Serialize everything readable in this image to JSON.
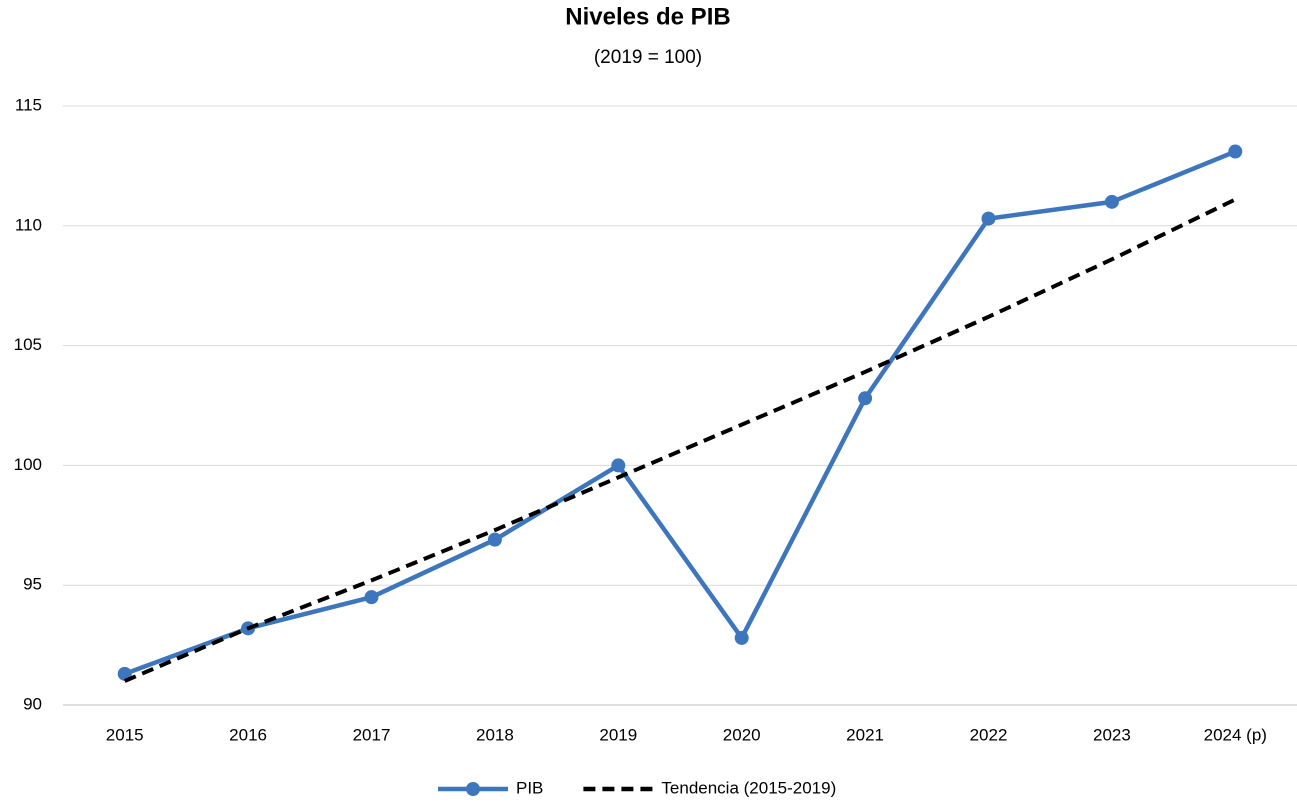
{
  "chart_data": {
    "type": "line",
    "title": "Niveles de PIB",
    "subtitle": "(2019 = 100)",
    "categories": [
      "2015",
      "2016",
      "2017",
      "2018",
      "2019",
      "2020",
      "2021",
      "2022",
      "2023",
      "2024 (p)"
    ],
    "series": [
      {
        "name": "PIB",
        "color": "#3d76bc",
        "dashed": false,
        "markers": true,
        "values": [
          91.3,
          93.2,
          94.5,
          96.9,
          100,
          92.8,
          102.8,
          110.3,
          111.0,
          113.1
        ]
      },
      {
        "name": "Tendencia (2015-2019)",
        "color": "#000000",
        "dashed": true,
        "markers": false,
        "values": [
          91.0,
          93.2,
          95.2,
          97.3,
          99.5,
          101.7,
          103.9,
          106.2,
          108.6,
          111.1
        ]
      }
    ],
    "ylim": [
      90,
      115
    ],
    "yticks": [
      90,
      95,
      100,
      105,
      110,
      115
    ],
    "grid": true,
    "legend": "bottom"
  }
}
